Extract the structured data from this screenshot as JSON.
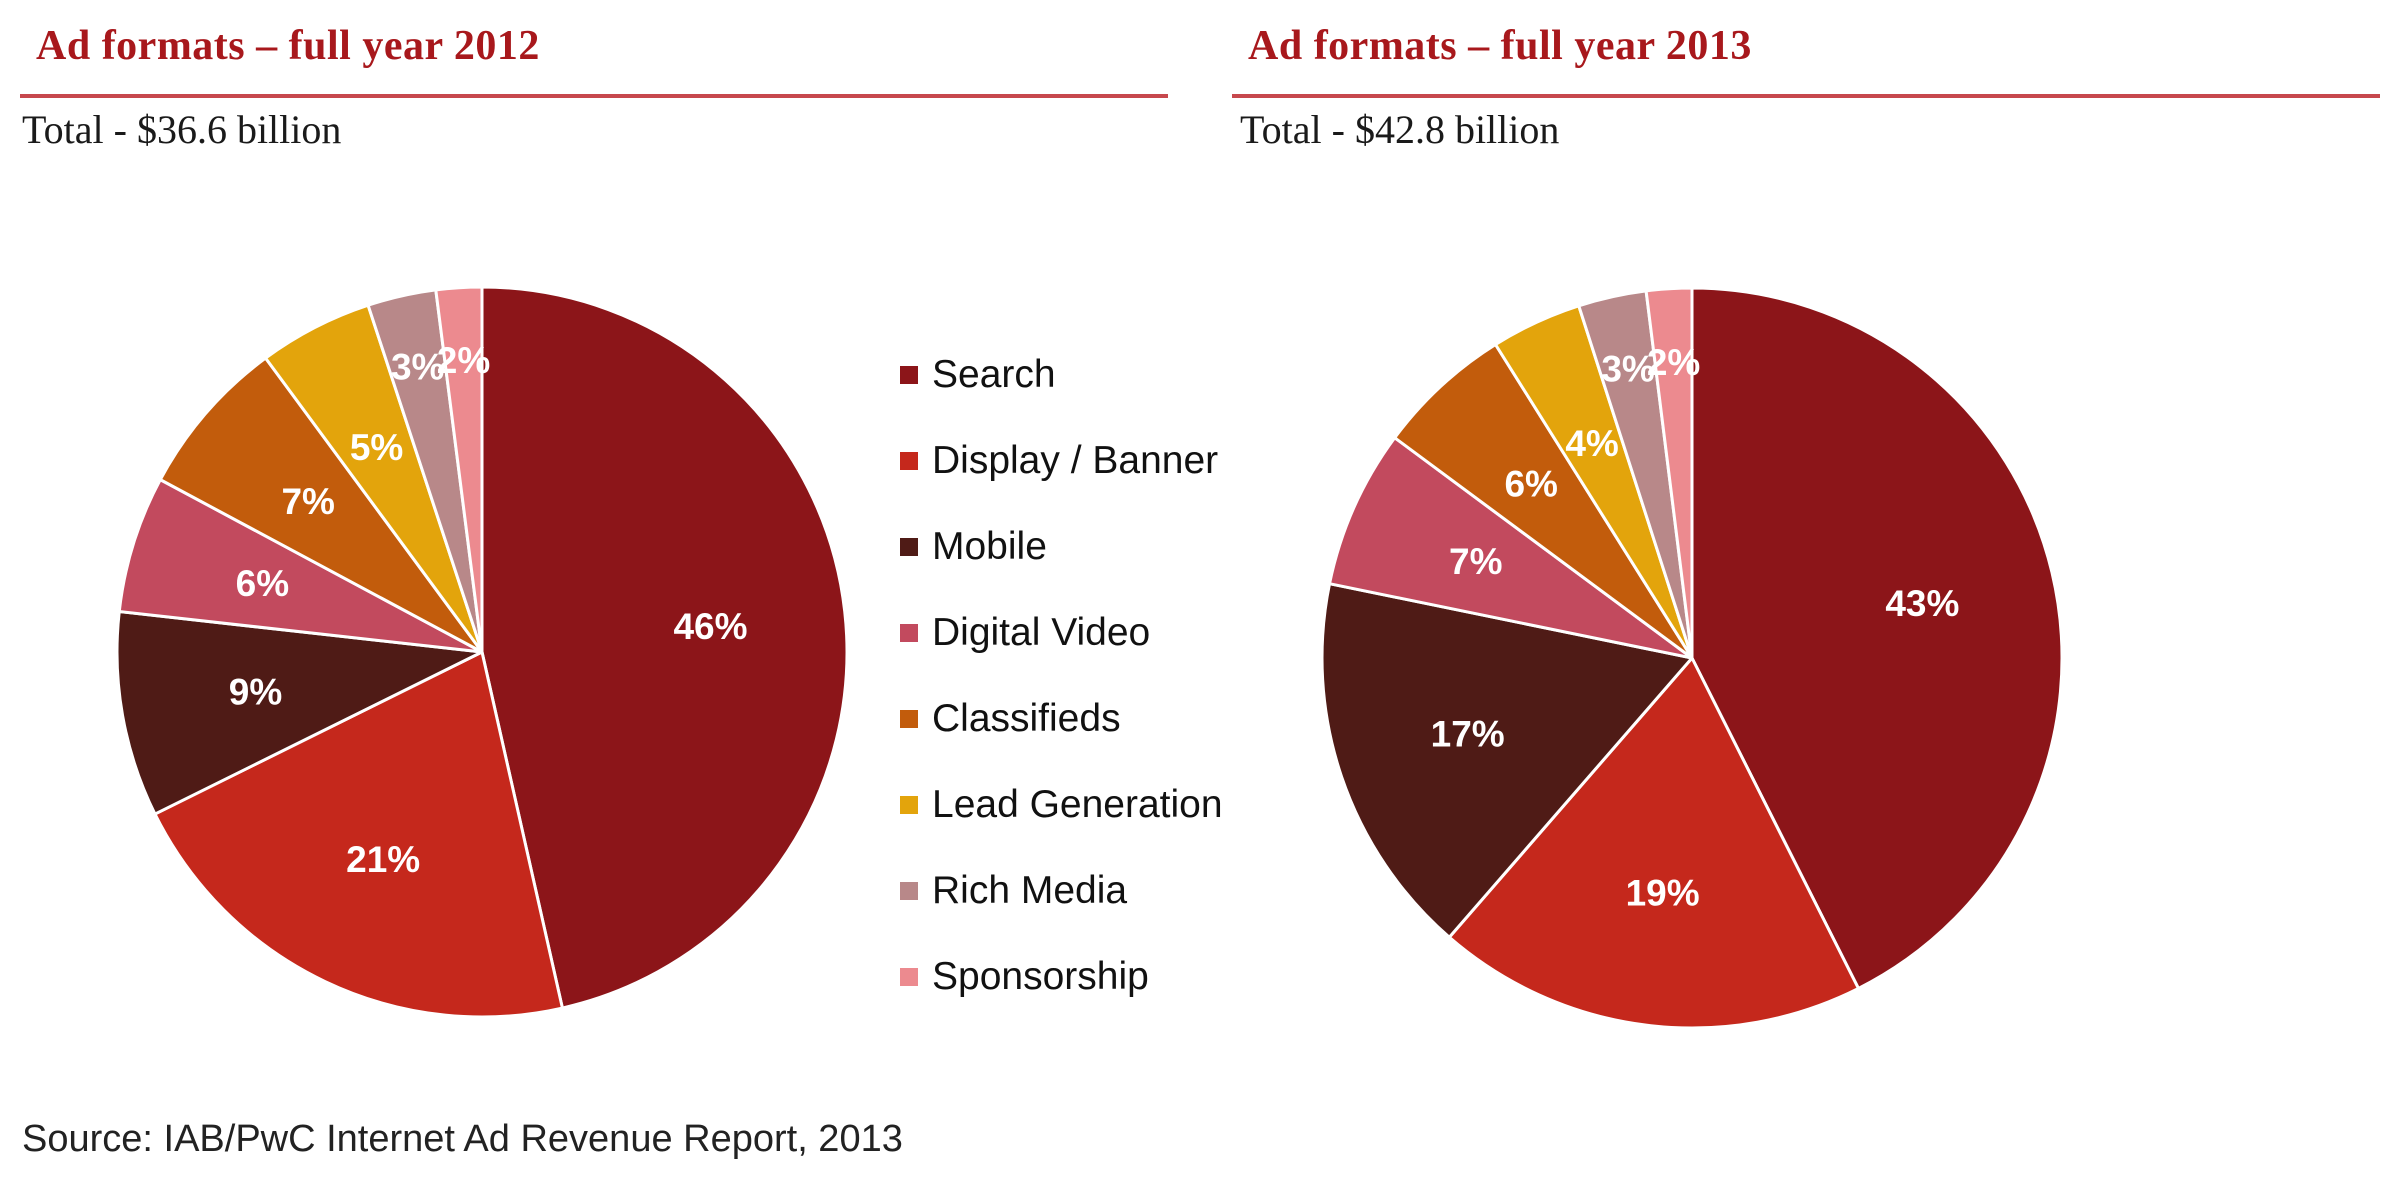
{
  "chart_data": [
    {
      "type": "pie",
      "title": "Ad formats – full year 2012",
      "subtitle": "Total - $36.6 billion",
      "categories": [
        "Search",
        "Display / Banner",
        "Mobile",
        "Digital Video",
        "Classifieds",
        "Lead Generation",
        "Rich Media",
        "Sponsorship"
      ],
      "values": [
        46,
        21,
        9,
        6,
        7,
        5,
        3,
        2
      ],
      "labels": [
        "46%",
        "21%",
        "9%",
        "6%",
        "7%",
        "5%",
        "3%",
        "2%"
      ],
      "unit": "%"
    },
    {
      "type": "pie",
      "title": "Ad formats – full year 2013",
      "subtitle": "Total - $42.8 billion",
      "categories": [
        "Search",
        "Display / Banner",
        "Mobile",
        "Digital Video",
        "Classifieds",
        "Lead Generation",
        "Rich Media",
        "Sponsorship"
      ],
      "values": [
        43,
        19,
        17,
        7,
        6,
        4,
        3,
        2
      ],
      "labels": [
        "43%",
        "19%",
        "17%",
        "7%",
        "6%",
        "4%",
        "3%",
        "2%"
      ],
      "unit": "%"
    }
  ],
  "legend": {
    "placement": "center-between-pies",
    "items": [
      {
        "label": "Search",
        "color": "#8c1519"
      },
      {
        "label": "Display / Banner",
        "color": "#c5281c"
      },
      {
        "label": "Mobile",
        "color": "#4f1b16"
      },
      {
        "label": "Digital Video",
        "color": "#c24a5e"
      },
      {
        "label": "Classifieds",
        "color": "#c25c0c"
      },
      {
        "label": "Lead Generation",
        "color": "#e3a40c"
      },
      {
        "label": "Rich Media",
        "color": "#b88889"
      },
      {
        "label": "Sponsorship",
        "color": "#ec8a8f"
      }
    ]
  },
  "source": "Source: IAB/PwC Internet Ad Revenue Report, 2013",
  "colors": {
    "title": "#a8181c",
    "rule": "#c7484d",
    "slice_border": "#ffffff",
    "label_text": "#ffffff"
  }
}
